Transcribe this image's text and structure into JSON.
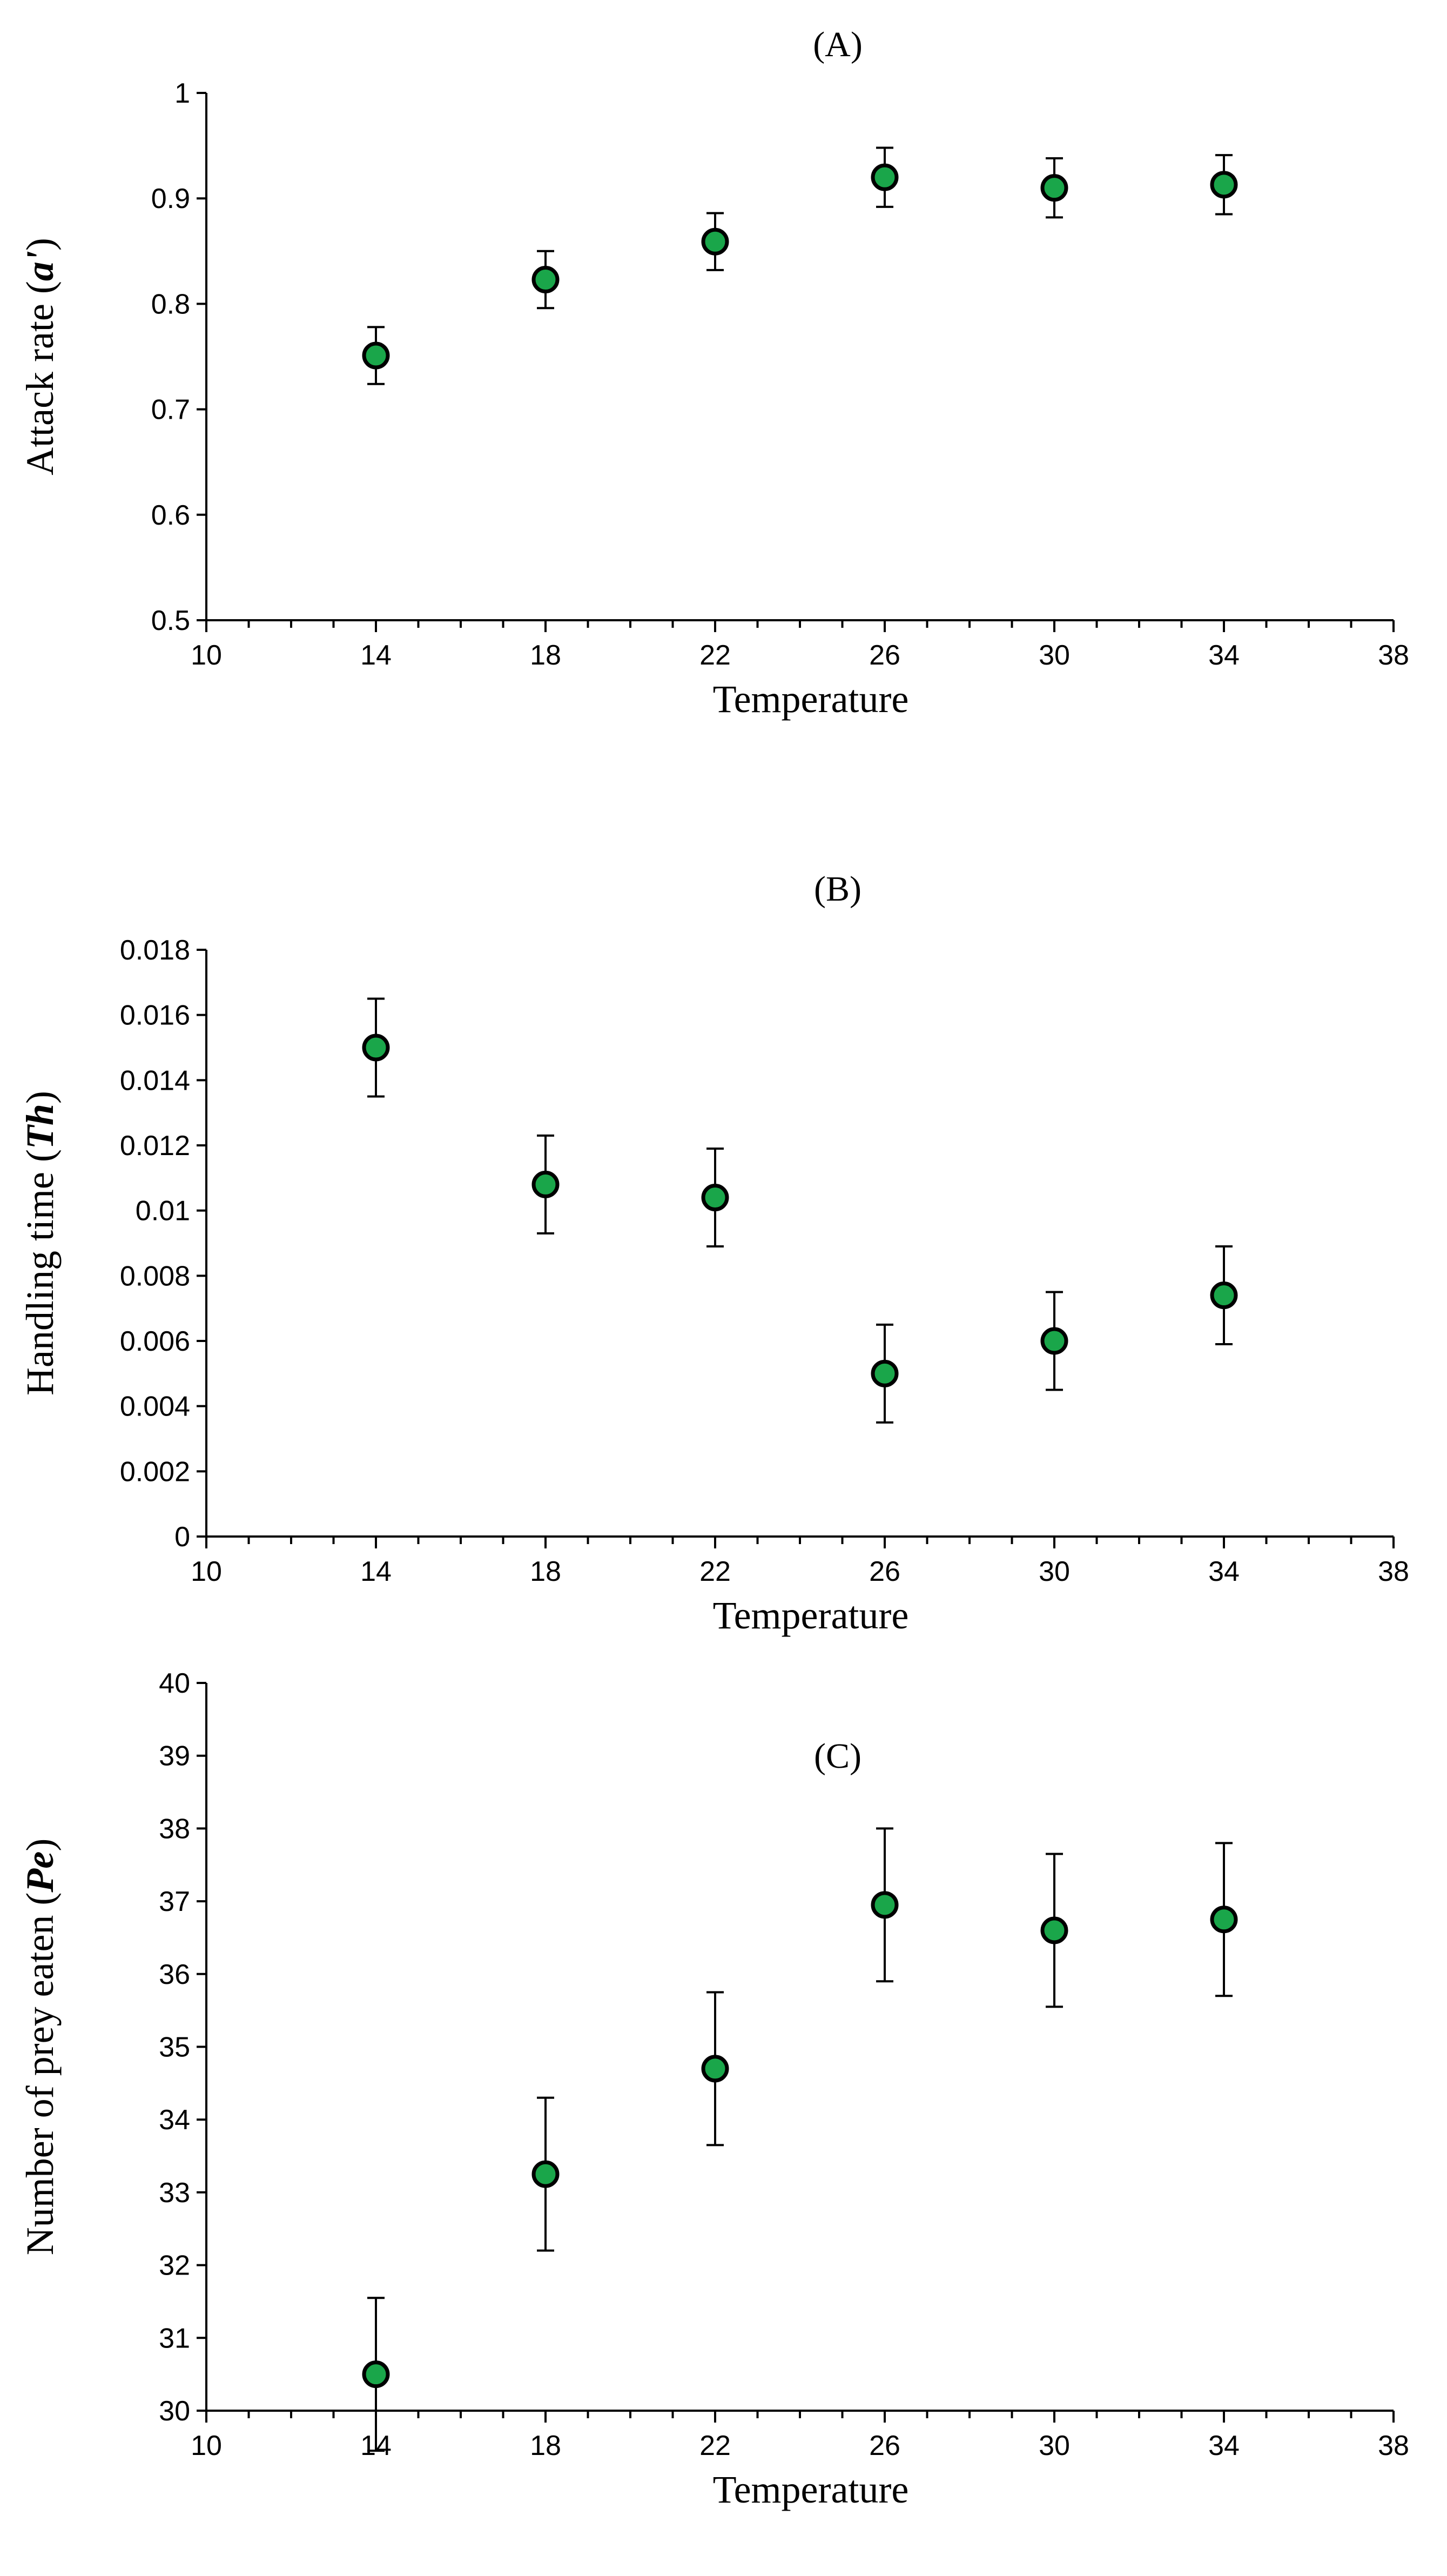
{
  "colors": {
    "marker": "#1aa64a",
    "marker_edge": "#000000",
    "axis": "#000000"
  },
  "chart_data": [
    {
      "type": "scatter",
      "title": "(A)",
      "xlabel": "Temperature",
      "ylabel": "Attack rate (",
      "ylabel_symbol": "a'",
      "ylabel_close": ")",
      "xlim": [
        10,
        38
      ],
      "ylim": [
        0.5,
        1
      ],
      "xticks": [
        10,
        14,
        18,
        22,
        26,
        30,
        34,
        38
      ],
      "yticks": [
        0.5,
        0.6,
        0.7,
        0.8,
        0.9,
        1
      ],
      "ytick_labels": [
        "0.5",
        "0.6",
        "0.7",
        "0.8",
        "0.9",
        "1"
      ],
      "x": [
        14,
        18,
        22,
        26,
        30,
        34
      ],
      "y": [
        0.751,
        0.823,
        0.859,
        0.92,
        0.91,
        0.913
      ],
      "yerr": [
        0.027,
        0.027,
        0.027,
        0.028,
        0.028,
        0.028
      ]
    },
    {
      "type": "scatter",
      "title": "(B)",
      "xlabel": "Temperature",
      "ylabel": "Handling time (",
      "ylabel_symbol": "Th",
      "ylabel_close": ")",
      "xlim": [
        10,
        38
      ],
      "ylim": [
        0,
        0.018
      ],
      "xticks": [
        10,
        14,
        18,
        22,
        26,
        30,
        34,
        38
      ],
      "yticks": [
        0,
        0.002,
        0.004,
        0.006,
        0.008,
        0.01,
        0.012,
        0.014,
        0.016,
        0.018
      ],
      "ytick_labels": [
        "0",
        "0.002",
        "0.004",
        "0.006",
        "0.008",
        "0.01",
        "0.012",
        "0.014",
        "0.016",
        "0.018"
      ],
      "x": [
        14,
        18,
        22,
        26,
        30,
        34
      ],
      "y": [
        0.015,
        0.0108,
        0.0104,
        0.005,
        0.006,
        0.0074
      ],
      "yerr": [
        0.0015,
        0.0015,
        0.0015,
        0.0015,
        0.0015,
        0.0015
      ]
    },
    {
      "type": "scatter",
      "title": "(C)",
      "xlabel": "Temperature",
      "ylabel": "Number of prey eaten (",
      "ylabel_symbol": "Pe",
      "ylabel_close": ")",
      "xlim": [
        10,
        38
      ],
      "ylim": [
        30,
        40
      ],
      "xticks": [
        10,
        14,
        18,
        22,
        26,
        30,
        34,
        38
      ],
      "yticks": [
        30,
        31,
        32,
        33,
        34,
        35,
        36,
        37,
        38,
        39,
        40
      ],
      "ytick_labels": [
        "30",
        "31",
        "32",
        "33",
        "34",
        "35",
        "36",
        "37",
        "38",
        "39",
        "40"
      ],
      "x": [
        14,
        18,
        22,
        26,
        30,
        34
      ],
      "y": [
        30.5,
        33.25,
        34.7,
        36.95,
        36.6,
        36.75
      ],
      "yerr": [
        1.05,
        1.05,
        1.05,
        1.05,
        1.05,
        1.05
      ]
    }
  ]
}
